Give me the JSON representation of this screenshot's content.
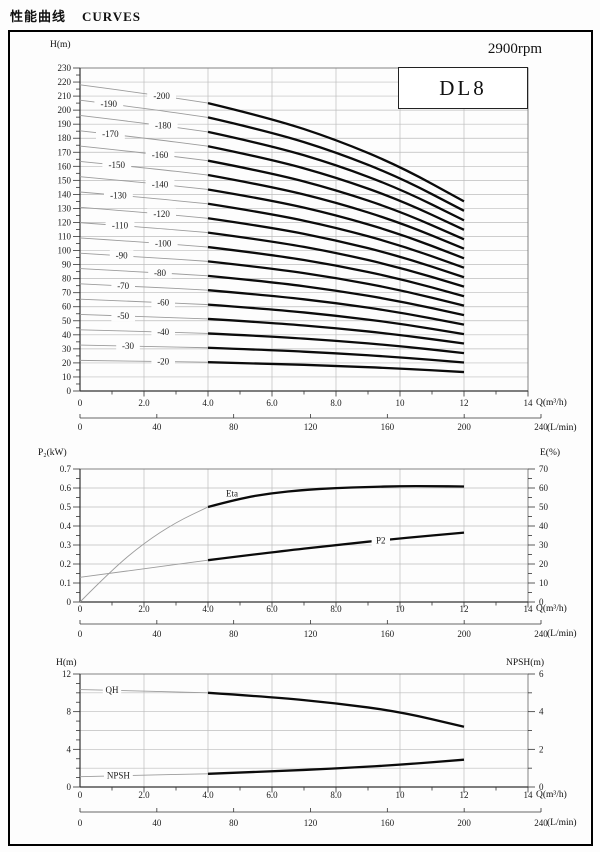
{
  "page": {
    "title_cn": "性能曲线",
    "title_en": "CURVES",
    "speed": "2900rpm",
    "model": "DL8"
  },
  "chart_data": [
    {
      "type": "line",
      "id": "head-capacity",
      "ylabel": "H(m)",
      "xlabel": "Q(m³/h)",
      "xlabel2": "(L/min)",
      "xlim": [
        0,
        14
      ],
      "ylim": [
        0,
        230
      ],
      "grid": "on",
      "x_tick_values": [
        0,
        2,
        4,
        6,
        8,
        10,
        12,
        14
      ],
      "x_tick_labels": [
        "0",
        "2.0",
        "4.0",
        "6.0",
        "8.0",
        "10",
        "12",
        "14"
      ],
      "y_tick_labels": [
        "0",
        "10",
        "20",
        "30",
        "40",
        "50",
        "60",
        "70",
        "80",
        "90",
        "100",
        "110",
        "120",
        "130",
        "140",
        "150",
        "160",
        "170",
        "180",
        "190",
        "200",
        "210",
        "220",
        "230"
      ],
      "lmin_tick_values": [
        0,
        40,
        80,
        120,
        160,
        200,
        240
      ],
      "lmin_tick_labels": [
        "0",
        "40",
        "80",
        "120",
        "160",
        "200",
        "240"
      ],
      "q": [
        0,
        2,
        4,
        6,
        8,
        10,
        12
      ],
      "solid_from_q": 4,
      "series": [
        {
          "label": "-20",
          "label_q": 2.6,
          "h": [
            21.8,
            21.2,
            20.5,
            19.4,
            17.9,
            16.0,
            13.5
          ]
        },
        {
          "label": "-30",
          "label_q": 1.5,
          "h": [
            32.7,
            31.8,
            30.8,
            29.1,
            26.9,
            24.0,
            20.3
          ]
        },
        {
          "label": "-40",
          "label_q": 2.6,
          "h": [
            43.6,
            42.4,
            41.0,
            38.8,
            35.8,
            32.0,
            27.0
          ]
        },
        {
          "label": "-50",
          "label_q": 1.35,
          "h": [
            54.5,
            53.0,
            51.3,
            48.5,
            44.8,
            40.0,
            33.8
          ]
        },
        {
          "label": "-60",
          "label_q": 2.6,
          "h": [
            65.4,
            63.6,
            61.5,
            58.2,
            53.7,
            48.0,
            40.5
          ]
        },
        {
          "label": "-70",
          "label_q": 1.35,
          "h": [
            76.3,
            74.2,
            71.8,
            67.9,
            62.7,
            56.0,
            47.3
          ]
        },
        {
          "label": "-80",
          "label_q": 2.5,
          "h": [
            87.2,
            84.8,
            82.0,
            77.6,
            71.6,
            64.0,
            54.0
          ]
        },
        {
          "label": "-90",
          "label_q": 1.3,
          "h": [
            98.1,
            95.4,
            92.3,
            87.3,
            80.6,
            72.0,
            60.8
          ]
        },
        {
          "label": "-100",
          "label_q": 2.6,
          "h": [
            109.0,
            106.0,
            102.5,
            97.0,
            89.5,
            80.0,
            67.5
          ]
        },
        {
          "label": "-110",
          "label_q": 1.25,
          "h": [
            119.9,
            116.6,
            112.8,
            106.7,
            98.5,
            88.0,
            74.3
          ]
        },
        {
          "label": "-120",
          "label_q": 2.55,
          "h": [
            130.8,
            127.2,
            123.0,
            116.4,
            107.4,
            96.0,
            81.0
          ]
        },
        {
          "label": "-130",
          "label_q": 1.2,
          "h": [
            141.7,
            137.8,
            133.3,
            126.1,
            116.4,
            104.0,
            87.8
          ]
        },
        {
          "label": "-140",
          "label_q": 2.5,
          "h": [
            152.6,
            148.4,
            143.5,
            135.8,
            125.3,
            112.0,
            94.5
          ]
        },
        {
          "label": "-150",
          "label_q": 1.15,
          "h": [
            163.5,
            159.0,
            153.8,
            145.5,
            134.3,
            120.0,
            101.3
          ]
        },
        {
          "label": "-160",
          "label_q": 2.5,
          "h": [
            174.4,
            169.6,
            164.0,
            155.2,
            143.2,
            128.0,
            108.0
          ]
        },
        {
          "label": "-170",
          "label_q": 0.95,
          "h": [
            185.3,
            180.2,
            174.3,
            164.9,
            152.2,
            136.0,
            114.8
          ]
        },
        {
          "label": "-180",
          "label_q": 2.6,
          "h": [
            196.2,
            190.8,
            184.5,
            174.6,
            161.1,
            144.0,
            121.5
          ]
        },
        {
          "label": "-190",
          "label_q": 0.9,
          "h": [
            207.1,
            201.4,
            194.8,
            184.3,
            170.1,
            152.0,
            128.3
          ]
        },
        {
          "label": "-200",
          "label_q": 2.55,
          "h": [
            218.0,
            212.0,
            205.0,
            194.0,
            179.0,
            160.0,
            135.0
          ]
        }
      ]
    },
    {
      "type": "line",
      "id": "power-efficiency",
      "ylabel_left": "P₂(kW)",
      "ylabel_right": "E(%)",
      "xlabel": "Q(m³/h)",
      "xlabel2": "(L/min)",
      "xlim": [
        0,
        14
      ],
      "ylim_left": [
        0,
        0.7
      ],
      "ylim_right": [
        0,
        70
      ],
      "grid": "on",
      "x_tick_values": [
        0,
        2,
        4,
        6,
        8,
        10,
        12,
        14
      ],
      "x_tick_labels": [
        "0",
        "2.0",
        "4.0",
        "6.0",
        "8.0",
        "10",
        "12",
        "14"
      ],
      "y_tick_labels_left": [
        "0",
        "0.1",
        "0.2",
        "0.3",
        "0.4",
        "0.5",
        "0.6",
        "0.7"
      ],
      "y_tick_labels_right": [
        "0",
        "10",
        "20",
        "30",
        "40",
        "50",
        "60",
        "70"
      ],
      "lmin_tick_values": [
        0,
        40,
        80,
        120,
        160,
        200,
        240
      ],
      "lmin_tick_labels": [
        "0",
        "40",
        "80",
        "120",
        "160",
        "200",
        "240"
      ],
      "solid_from_q": 4,
      "eta": {
        "label": "Eta",
        "label_q": 4.75,
        "q": [
          0,
          1,
          2,
          3,
          4,
          5,
          6,
          7,
          8,
          9,
          10,
          11,
          12
        ],
        "pct": [
          0,
          17,
          31,
          42,
          50,
          54.5,
          57.3,
          59,
          60,
          60.5,
          61,
          61,
          60.8
        ]
      },
      "p2": {
        "label": "P2",
        "label_q": 9.4,
        "q": [
          0,
          2,
          4,
          6,
          8,
          10,
          12
        ],
        "kw": [
          0.13,
          0.175,
          0.22,
          0.262,
          0.3,
          0.335,
          0.365
        ]
      }
    },
    {
      "type": "line",
      "id": "qh-npsh",
      "ylabel_left": "H(m)",
      "ylabel_right": "NPSH(m)",
      "xlabel": "Q(m³/h)",
      "xlabel2": "(L/min)",
      "xlim": [
        0,
        14
      ],
      "ylim_left": [
        0,
        12
      ],
      "ylim_right": [
        0,
        6
      ],
      "grid": "on",
      "x_tick_values": [
        0,
        2,
        4,
        6,
        8,
        10,
        12,
        14
      ],
      "x_tick_labels": [
        "0",
        "2.0",
        "4.0",
        "6.0",
        "8.0",
        "10",
        "12",
        "14"
      ],
      "y_tick_labels_left": [
        "0",
        "4",
        "8",
        "12"
      ],
      "y_tick_labels_right": [
        "0",
        "2",
        "4",
        "6"
      ],
      "lmin_tick_values": [
        0,
        40,
        80,
        120,
        160,
        200,
        240
      ],
      "lmin_tick_labels": [
        "0",
        "40",
        "80",
        "120",
        "160",
        "200",
        "240"
      ],
      "solid_from_q": 4,
      "qh": {
        "label": "QH",
        "label_q": 1.0,
        "q": [
          0,
          2,
          4,
          6,
          8,
          10,
          12
        ],
        "h": [
          10.35,
          10.2,
          10.0,
          9.55,
          8.9,
          8.0,
          6.4
        ]
      },
      "npsh": {
        "label": "NPSH",
        "label_q": 1.2,
        "q": [
          0,
          2,
          4,
          6,
          8,
          10,
          12
        ],
        "npsh": [
          0.55,
          0.63,
          0.7,
          0.83,
          0.98,
          1.18,
          1.45
        ]
      }
    }
  ]
}
